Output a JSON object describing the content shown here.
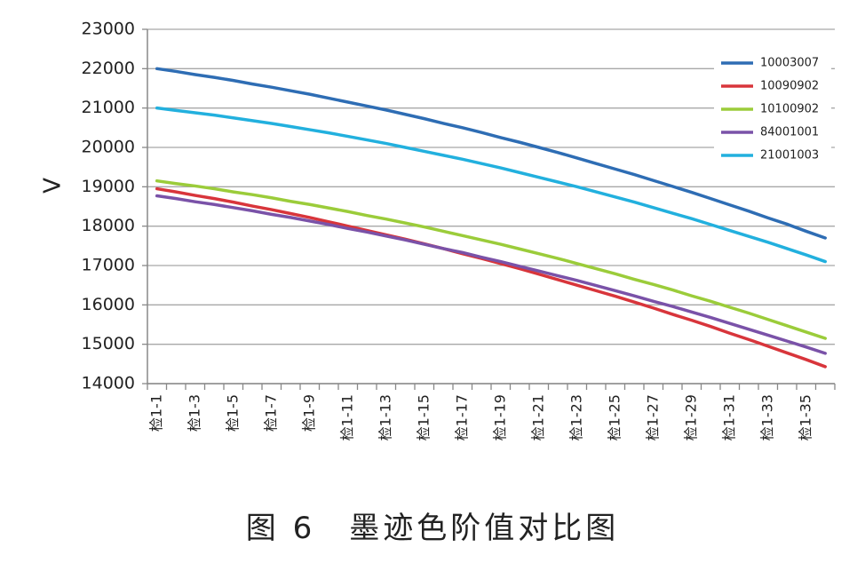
{
  "chart_data": {
    "type": "line",
    "title": "图 6　墨迹色阶值对比图",
    "y_label": "V",
    "categories": [
      "检1-1",
      null,
      "检1-3",
      null,
      "检1-5",
      null,
      "检1-7",
      null,
      "检1-9",
      null,
      "检1-11",
      null,
      "检1-13",
      null,
      "检1-15",
      null,
      "检1-17",
      null,
      "检1-19",
      null,
      "检1-21",
      null,
      "检1-23",
      null,
      "检1-25",
      null,
      "检1-27",
      null,
      "检1-29",
      null,
      "检1-31",
      null,
      "检1-33",
      null,
      "检1-35",
      null
    ],
    "series": [
      {
        "name": "10003007",
        "color": "#2e6db4",
        "values": [
          22000,
          21930,
          21850,
          21780,
          21700,
          21610,
          21530,
          21440,
          21350,
          21250,
          21150,
          21050,
          20950,
          20840,
          20730,
          20610,
          20500,
          20380,
          20250,
          20130,
          20000,
          19870,
          19730,
          19590,
          19450,
          19310,
          19160,
          19010,
          18860,
          18700,
          18540,
          18380,
          18210,
          18050,
          17870,
          17700
        ]
      },
      {
        "name": "10090902",
        "color": "#d8353b",
        "values": [
          18950,
          18870,
          18780,
          18700,
          18610,
          18510,
          18420,
          18320,
          18220,
          18110,
          18000,
          17890,
          17780,
          17670,
          17550,
          17430,
          17300,
          17180,
          17050,
          16920,
          16780,
          16640,
          16500,
          16360,
          16220,
          16070,
          15920,
          15760,
          15610,
          15450,
          15280,
          15120,
          14950,
          14780,
          14610,
          14430
        ]
      },
      {
        "name": "10100902",
        "color": "#9bcc3a",
        "values": [
          19150,
          19080,
          19020,
          18950,
          18870,
          18800,
          18720,
          18630,
          18550,
          18460,
          18370,
          18270,
          18180,
          18080,
          17980,
          17870,
          17760,
          17650,
          17540,
          17420,
          17300,
          17180,
          17050,
          16920,
          16790,
          16650,
          16520,
          16380,
          16230,
          16090,
          15940,
          15790,
          15630,
          15470,
          15310,
          15150
        ]
      },
      {
        "name": "84001001",
        "color": "#7a52a8",
        "values": [
          18770,
          18700,
          18620,
          18550,
          18470,
          18390,
          18300,
          18220,
          18130,
          18040,
          17940,
          17850,
          17750,
          17650,
          17540,
          17430,
          17330,
          17210,
          17100,
          16980,
          16860,
          16740,
          16620,
          16490,
          16360,
          16230,
          16090,
          15960,
          15820,
          15680,
          15530,
          15380,
          15230,
          15080,
          14930,
          14770
        ]
      },
      {
        "name": "21001003",
        "color": "#22b0de",
        "values": [
          21000,
          20940,
          20880,
          20820,
          20750,
          20680,
          20610,
          20530,
          20450,
          20370,
          20280,
          20190,
          20100,
          20000,
          19900,
          19800,
          19700,
          19590,
          19480,
          19360,
          19240,
          19120,
          19000,
          18870,
          18740,
          18610,
          18470,
          18330,
          18190,
          18040,
          17890,
          17740,
          17590,
          17430,
          17270,
          17100
        ]
      }
    ],
    "ylim": [
      14000,
      23000
    ],
    "yticks": [
      14000,
      15000,
      16000,
      17000,
      18000,
      19000,
      20000,
      21000,
      22000,
      23000
    ],
    "grid": true,
    "legend": "top-right"
  }
}
